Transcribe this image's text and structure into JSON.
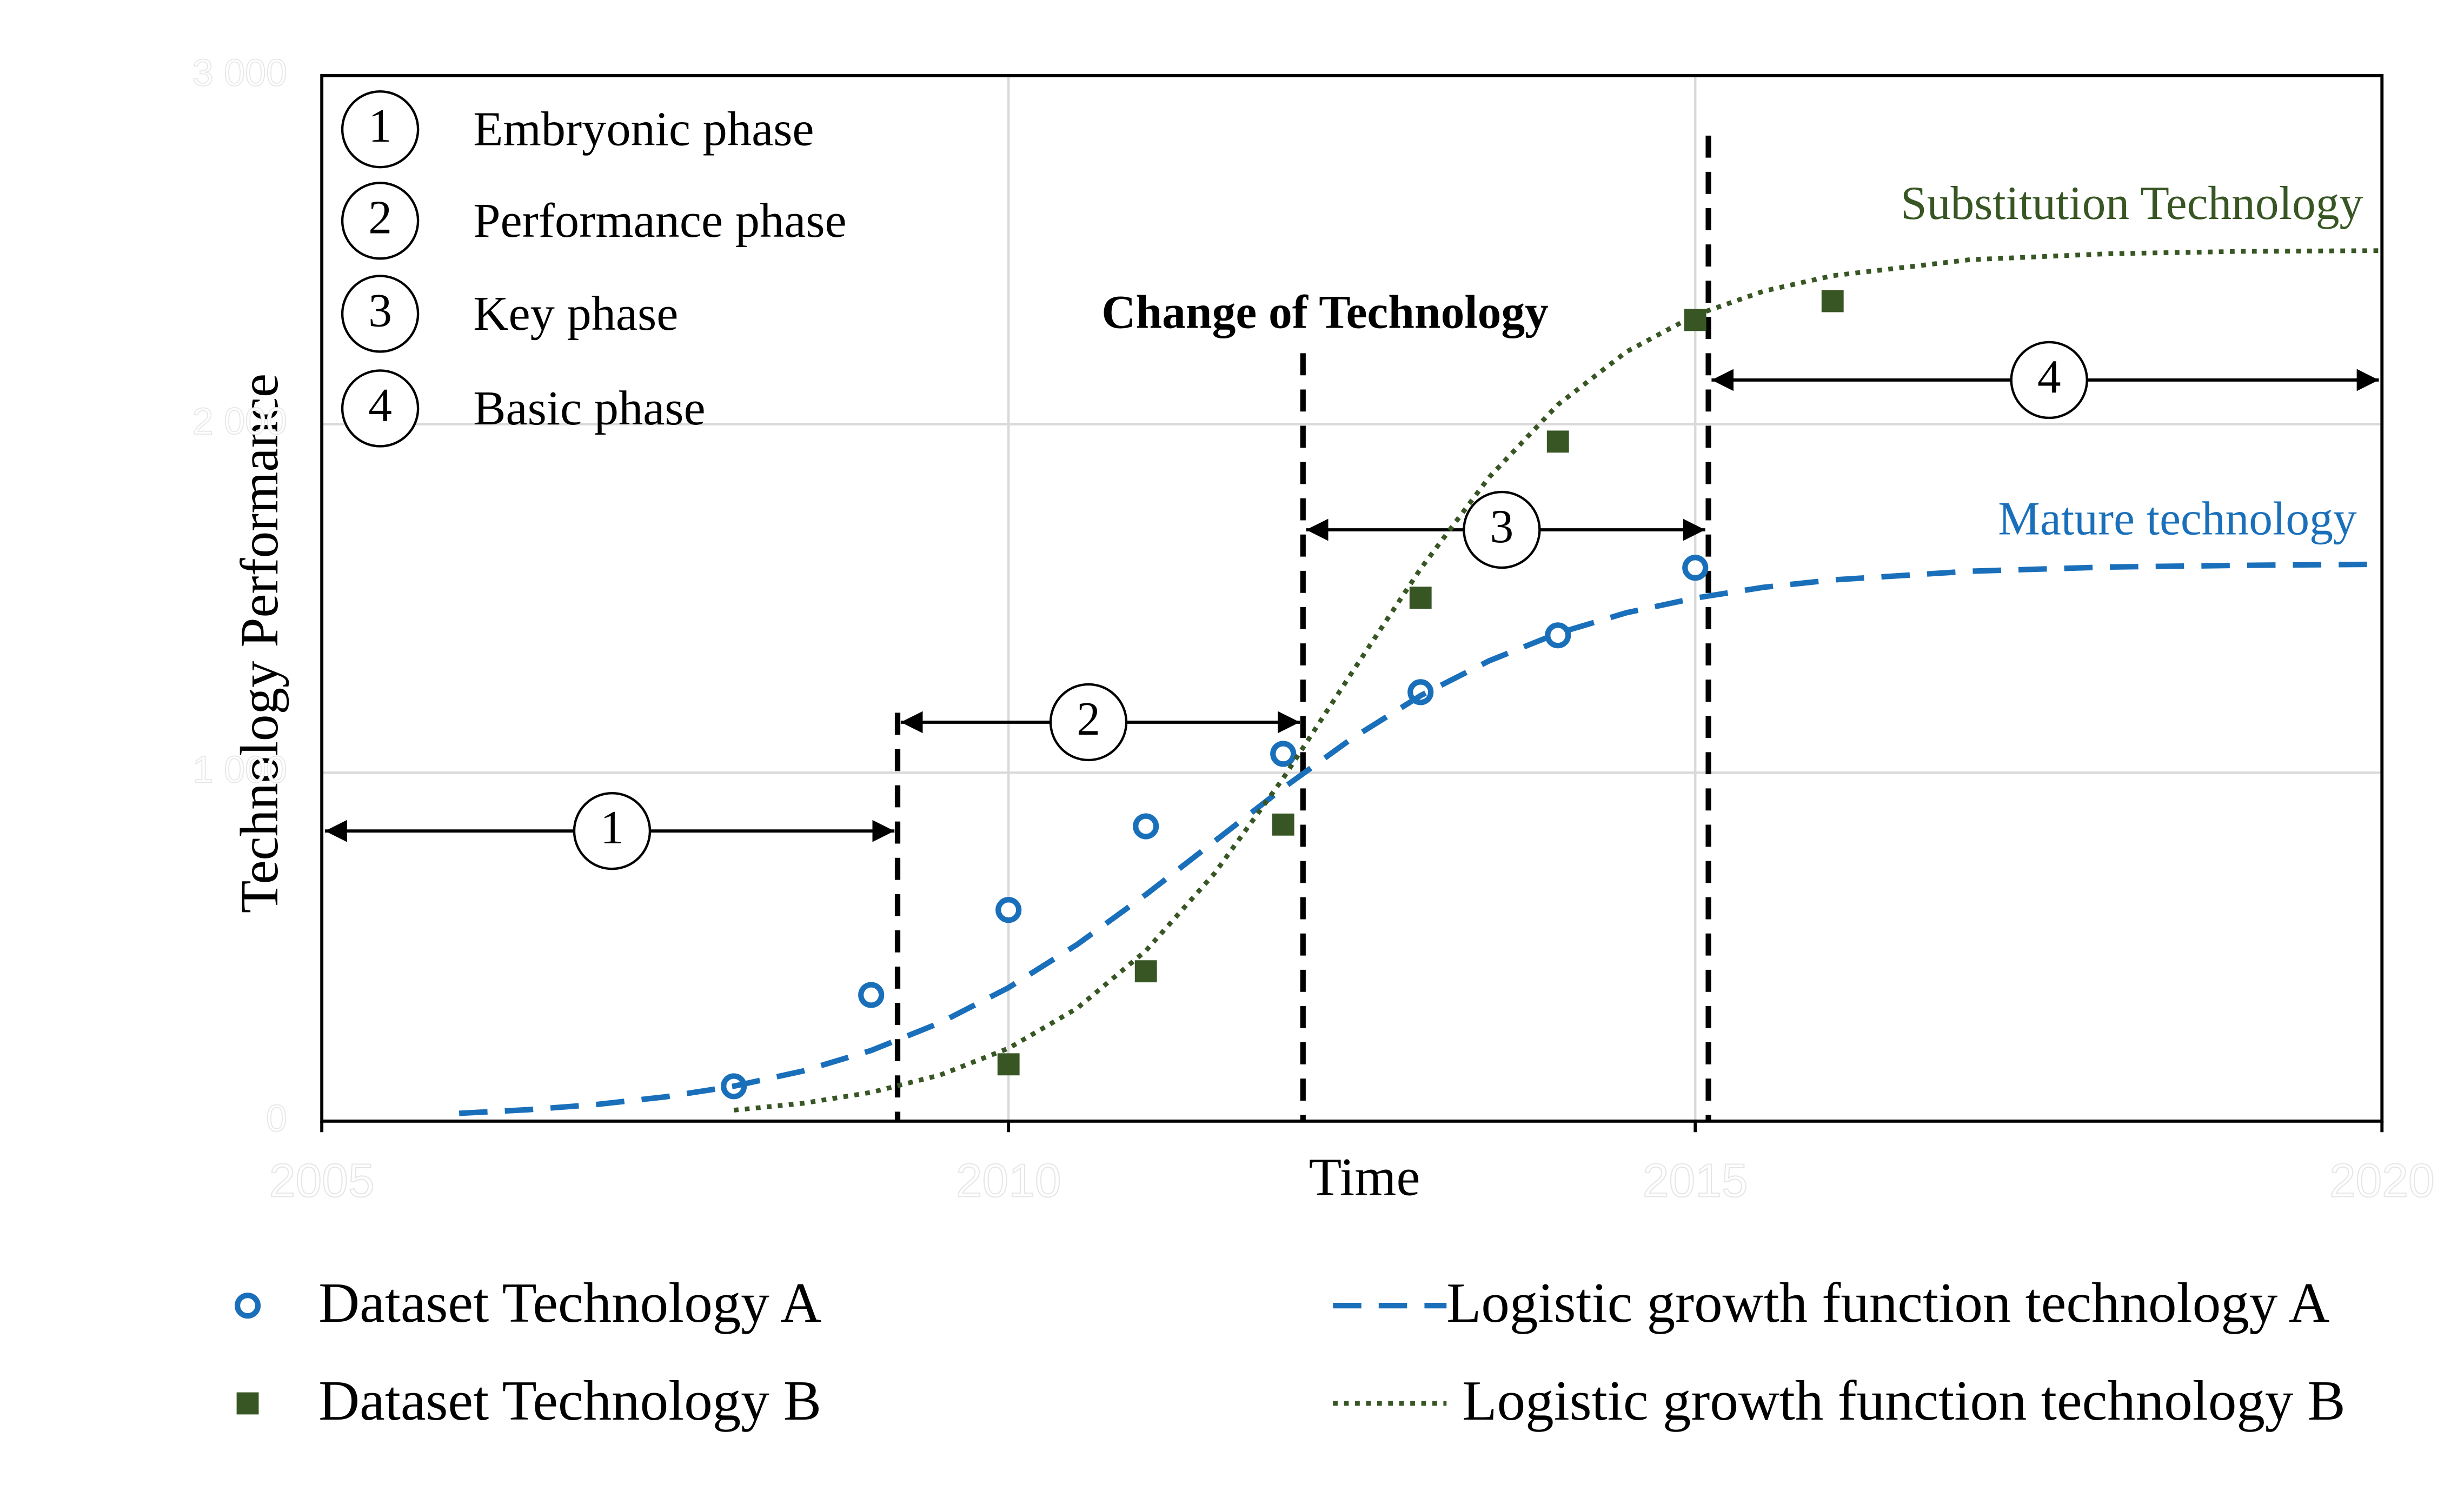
{
  "chart_data": {
    "type": "scatter",
    "xlabel": "Time",
    "ylabel": "Technology Performance",
    "xlim": [
      2005,
      2020
    ],
    "xticks": [
      2005,
      2010,
      2015,
      2020
    ],
    "ylim": [
      0,
      3000
    ],
    "yticks": [
      0,
      {
        "value": 1000,
        "label": "1 000"
      },
      {
        "value": 2000,
        "label": "2 000"
      },
      {
        "value": 3000,
        "label": "3 000"
      }
    ],
    "grid": true,
    "legend": "bottom",
    "annotations": {
      "change": "Change of Technology",
      "substitution": "Substitution Technology",
      "mature": "Mature technology"
    },
    "phases": [
      {
        "number": "1",
        "label": "Embryonic phase"
      },
      {
        "number": "2",
        "label": "Performance phase"
      },
      {
        "number": "3",
        "label": "Key phase"
      },
      {
        "number": "4",
        "label": "Basic phase"
      }
    ],
    "series": [
      {
        "name": "Dataset Technology A",
        "type": "scatter",
        "marker": "circle",
        "color": "#1a6fba",
        "x": [
          2008,
          2009,
          2010,
          2011,
          2012,
          2013,
          2014,
          2015
        ],
        "values": [
          100,
          362,
          606,
          846,
          1054,
          1231,
          1394,
          1588
        ]
      },
      {
        "name": "Dataset Technology B",
        "type": "scatter",
        "marker": "square",
        "color": "#375623",
        "x": [
          2010,
          2011,
          2012,
          2013,
          2014,
          2015,
          2016
        ],
        "values": [
          163,
          430,
          851,
          1502,
          1950,
          2299,
          2353
        ]
      },
      {
        "name": "Logistic growth function technology A",
        "type": "line",
        "style": "dashed",
        "color": "#1a6fba",
        "x": [
          2006,
          2006.5,
          2007,
          2007.5,
          2008,
          2008.5,
          2009,
          2009.5,
          2010,
          2010.5,
          2011,
          2011.5,
          2012,
          2012.5,
          2013,
          2013.5,
          2014,
          2014.5,
          2015,
          2015.5,
          2016,
          2017,
          2018,
          2019,
          2020
        ],
        "values": [
          22.4,
          32.8,
          47.8,
          69.6,
          100.3,
          143.5,
          202.8,
          282,
          383,
          507,
          650,
          803,
          956,
          1098,
          1221,
          1321,
          1400,
          1459,
          1501,
          1532,
          1553,
          1578,
          1590,
          1595,
          1598
        ]
      },
      {
        "name": "Logistic growth function technology B",
        "type": "line",
        "style": "dotted",
        "color": "#375623",
        "x": [
          2008,
          2008.5,
          2009,
          2009.5,
          2010,
          2010.5,
          2011,
          2011.5,
          2012,
          2012.5,
          2013,
          2013.5,
          2014,
          2014.5,
          2015,
          2015.5,
          2016,
          2017,
          2018,
          2019,
          2020
        ],
        "values": [
          31.5,
          51,
          82.5,
          132,
          209,
          324,
          489,
          711,
          984,
          1287,
          1585,
          1848,
          2056,
          2208,
          2313,
          2382,
          2426,
          2472,
          2489,
          2496,
          2498
        ]
      }
    ]
  }
}
